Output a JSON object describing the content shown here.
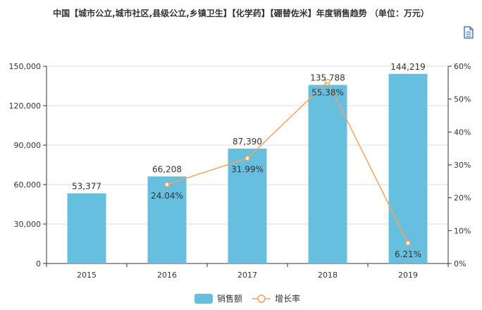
{
  "title": "中国【城市公立,城市社区,县级公立,乡镇卫生】【化学药】【硼替佐米】年度销售趋势 （单位：万元）",
  "doc_icon": "document-icon",
  "colors": {
    "bar": "#67bfe0",
    "line": "#f5a35b",
    "grid": "#dcdcdc",
    "axis": "#333333"
  },
  "chart_data": {
    "type": "bar",
    "title": "中国【城市公立,城市社区,县级公立,乡镇卫生】【化学药】【硼替佐米】年度销售趋势 （单位：万元）",
    "categories": [
      "2015",
      "2016",
      "2017",
      "2018",
      "2019"
    ],
    "series": [
      {
        "name": "销售额",
        "type": "bar",
        "axis": "left",
        "values": [
          53377,
          66208,
          87390,
          135788,
          144219
        ],
        "labels": [
          "53,377",
          "66,208",
          "87,390",
          "135,788",
          "144,219"
        ]
      },
      {
        "name": "增长率",
        "type": "line",
        "axis": "right",
        "x": [
          "2016",
          "2017",
          "2018",
          "2019"
        ],
        "values": [
          24.04,
          31.99,
          55.38,
          6.21
        ],
        "labels": [
          "24.04%",
          "31.99%",
          "55.38%",
          "6.21%"
        ]
      }
    ],
    "ylim_left": [
      0,
      150000
    ],
    "yticks_left": [
      "0",
      "30,000",
      "60,000",
      "90,000",
      "120,000",
      "150,000"
    ],
    "ylim_right": [
      0,
      60
    ],
    "yticks_right": [
      "0%",
      "10%",
      "20%",
      "30%",
      "40%",
      "50%",
      "60%"
    ],
    "grid": true,
    "legend": "bottom-center"
  }
}
